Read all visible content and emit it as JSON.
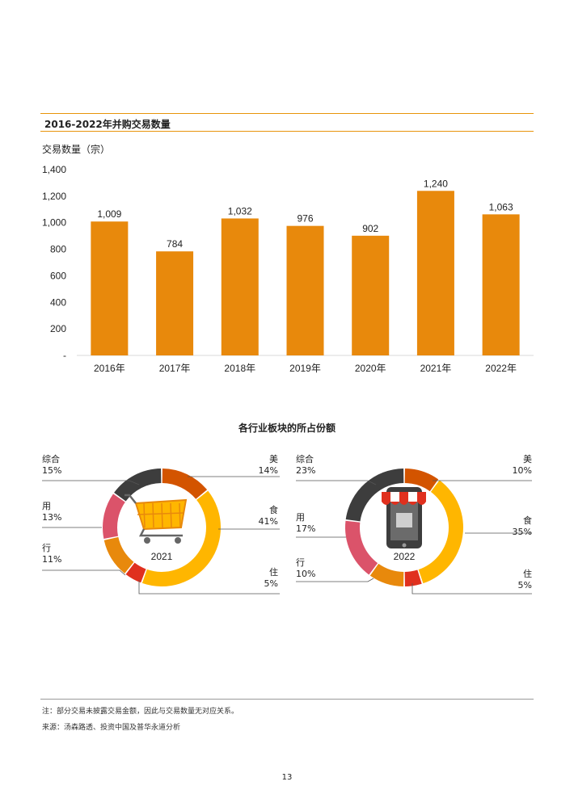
{
  "section_title": "2016-2022年并购交易数量",
  "bar_chart": {
    "ylabel": "交易数量（宗）",
    "yticks": [
      "1,400",
      "1,200",
      "1,000",
      "800",
      "600",
      "400",
      "200",
      "-"
    ]
  },
  "pie_section_title": "各行业板块的所占份额",
  "donut_2021": {
    "center_label": "2021",
    "labels": {
      "zonghe": {
        "name": "综合",
        "pct": "15%"
      },
      "yong": {
        "name": "用",
        "pct": "13%"
      },
      "xing": {
        "name": "行",
        "pct": "11%"
      },
      "mei": {
        "name": "美",
        "pct": "14%"
      },
      "shi": {
        "name": "食",
        "pct": "41%"
      },
      "zhu": {
        "name": "住",
        "pct": "5%"
      }
    }
  },
  "donut_2022": {
    "center_label": "2022",
    "labels": {
      "zonghe": {
        "name": "综合",
        "pct": "23%"
      },
      "yong": {
        "name": "用",
        "pct": "17%"
      },
      "xing": {
        "name": "行",
        "pct": "10%"
      },
      "mei": {
        "name": "美",
        "pct": "10%"
      },
      "shi": {
        "name": "食",
        "pct": "35%"
      },
      "zhu": {
        "name": "住",
        "pct": "5%"
      }
    }
  },
  "notes": {
    "note1": "注：部分交易未披露交易金额，因此与交易数量无对应关系。",
    "source": "来源：汤森路透、投资中国及普华永道分析"
  },
  "page_number": "13",
  "colors": {
    "accent": "#e8940a",
    "bar": "#e8890c",
    "mei": "#d35400",
    "shi": "#ffb600",
    "zhu": "#e0301e",
    "xing": "#e8890c",
    "yong": "#db536a",
    "zonghe": "#3d3d3d"
  },
  "chart_data": [
    {
      "type": "bar",
      "title": "2016-2022年并购交易数量",
      "ylabel": "交易数量（宗）",
      "categories": [
        "2016年",
        "2017年",
        "2018年",
        "2019年",
        "2020年",
        "2021年",
        "2022年"
      ],
      "values": [
        1009,
        784,
        1032,
        976,
        902,
        1240,
        1063
      ],
      "value_labels": [
        "1,009",
        "784",
        "1,032",
        "976",
        "902",
        "1,240",
        "1,063"
      ],
      "ylim": [
        0,
        1400
      ],
      "grid": false
    },
    {
      "type": "pie",
      "title": "2021",
      "categories": [
        "美",
        "食",
        "住",
        "行",
        "用",
        "综合"
      ],
      "values": [
        14,
        41,
        5,
        11,
        13,
        15
      ]
    },
    {
      "type": "pie",
      "title": "2022",
      "categories": [
        "美",
        "食",
        "住",
        "行",
        "用",
        "综合"
      ],
      "values": [
        10,
        35,
        5,
        10,
        17,
        23
      ]
    }
  ]
}
